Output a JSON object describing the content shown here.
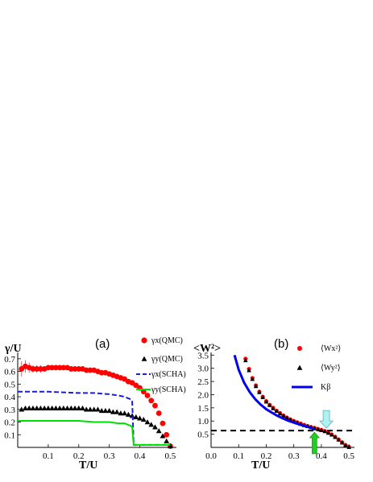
{
  "chart_data": [
    {
      "type": "scatter",
      "panel_label": "(a)",
      "xlabel": "T/U",
      "ylabel": "γ/U",
      "xlim": [
        0.0,
        0.52
      ],
      "ylim": [
        0.0,
        0.75
      ],
      "x_ticks": [
        0.1,
        0.2,
        0.3,
        0.4,
        0.5
      ],
      "x_tick_labels": [
        "0.1",
        "0.2",
        "0.3",
        "0.4",
        "0.5"
      ],
      "y_ticks": [
        0.1,
        0.2,
        0.3,
        0.4,
        0.5,
        0.6,
        0.7
      ],
      "y_tick_labels": [
        "0.1",
        "0.2",
        "0.3",
        "0.4",
        "0.5",
        "0.6",
        "0.7"
      ],
      "legend_position": "top-right",
      "series": [
        {
          "name": "γx(QMC)",
          "style": "circle",
          "color": "#ff0000",
          "x": [
            0.0125,
            0.025,
            0.0375,
            0.05,
            0.0625,
            0.075,
            0.0875,
            0.1,
            0.1125,
            0.125,
            0.1375,
            0.15,
            0.1625,
            0.175,
            0.1875,
            0.2,
            0.2125,
            0.225,
            0.2375,
            0.25,
            0.2625,
            0.275,
            0.2875,
            0.3,
            0.3125,
            0.325,
            0.3375,
            0.35,
            0.3625,
            0.375,
            0.3875,
            0.4,
            0.4125,
            0.425,
            0.4375,
            0.45,
            0.4625,
            0.475,
            0.4875,
            0.5
          ],
          "y": [
            0.62,
            0.64,
            0.63,
            0.62,
            0.62,
            0.62,
            0.62,
            0.63,
            0.63,
            0.63,
            0.63,
            0.63,
            0.63,
            0.62,
            0.62,
            0.62,
            0.62,
            0.61,
            0.61,
            0.61,
            0.6,
            0.59,
            0.59,
            0.58,
            0.57,
            0.56,
            0.55,
            0.54,
            0.52,
            0.51,
            0.49,
            0.47,
            0.44,
            0.41,
            0.37,
            0.33,
            0.27,
            0.19,
            0.1,
            0.01
          ],
          "error": [
            0.06,
            0.05,
            0.04,
            0.03,
            0.03,
            0.03,
            0.02,
            0.02,
            0.02,
            0.02,
            0.02,
            0.02,
            0.02,
            0.02,
            0.02,
            0.02,
            0.02,
            0.02,
            0.02,
            0.02,
            0.02,
            0.02,
            0.02,
            0.02,
            0.02,
            0.02,
            0.02,
            0.02,
            0.02,
            0.02,
            0.02,
            0.02,
            0.02,
            0.02,
            0.02,
            0.02,
            0.02,
            0.02,
            0.02,
            0.02
          ]
        },
        {
          "name": "γy(QMC)",
          "style": "triangle",
          "color": "#000000",
          "x": [
            0.0125,
            0.025,
            0.0375,
            0.05,
            0.0625,
            0.075,
            0.0875,
            0.1,
            0.1125,
            0.125,
            0.1375,
            0.15,
            0.1625,
            0.175,
            0.1875,
            0.2,
            0.2125,
            0.225,
            0.2375,
            0.25,
            0.2625,
            0.275,
            0.2875,
            0.3,
            0.3125,
            0.325,
            0.3375,
            0.35,
            0.3625,
            0.375,
            0.3875,
            0.4,
            0.4125,
            0.425,
            0.4375,
            0.45,
            0.4625,
            0.475,
            0.4875,
            0.5
          ],
          "y": [
            0.3,
            0.31,
            0.31,
            0.31,
            0.31,
            0.31,
            0.31,
            0.31,
            0.31,
            0.31,
            0.31,
            0.31,
            0.31,
            0.31,
            0.31,
            0.31,
            0.31,
            0.3,
            0.3,
            0.3,
            0.3,
            0.29,
            0.29,
            0.29,
            0.28,
            0.28,
            0.27,
            0.27,
            0.26,
            0.25,
            0.24,
            0.23,
            0.22,
            0.2,
            0.18,
            0.16,
            0.13,
            0.09,
            0.05,
            0.01
          ]
        },
        {
          "name": "γx(SCHA)",
          "style": "dashed-line",
          "color": "#1c1cdc",
          "x": [
            0.0,
            0.1,
            0.2,
            0.25,
            0.3,
            0.33,
            0.35,
            0.36,
            0.37,
            0.375,
            0.38,
            0.5
          ],
          "y": [
            0.44,
            0.44,
            0.43,
            0.43,
            0.42,
            0.41,
            0.4,
            0.39,
            0.38,
            0.37,
            0.02,
            0.02
          ]
        },
        {
          "name": "γy(SCHA)",
          "style": "solid-line",
          "color": "#00e000",
          "x": [
            0.0,
            0.1,
            0.2,
            0.25,
            0.3,
            0.33,
            0.35,
            0.36,
            0.37,
            0.375,
            0.38,
            0.5
          ],
          "y": [
            0.21,
            0.21,
            0.21,
            0.2,
            0.2,
            0.19,
            0.19,
            0.18,
            0.17,
            0.16,
            0.02,
            0.02
          ]
        }
      ]
    },
    {
      "type": "scatter",
      "panel_label": "(b)",
      "xlabel": "T/U",
      "ylabel": "<W²>",
      "xlim": [
        0.0,
        0.52
      ],
      "ylim": [
        0.0,
        3.6
      ],
      "x_ticks": [
        0.0,
        0.1,
        0.2,
        0.3,
        0.4,
        0.5
      ],
      "x_tick_labels": [
        "0.0",
        "0.1",
        "0.2",
        "0.3",
        "0.4",
        "0.5"
      ],
      "y_ticks": [
        0.5,
        1.0,
        1.5,
        2.0,
        2.5,
        3.0,
        3.5
      ],
      "y_tick_labels": [
        "0.5",
        "1.0",
        "1.5",
        "2.0",
        "2.5",
        "3.0",
        "3.5"
      ],
      "legend_position": "top-right",
      "reference_line": {
        "y": 0.637,
        "style": "dashed",
        "color": "#000000"
      },
      "arrows": [
        {
          "x": 0.375,
          "color": "#22cc22",
          "direction": "up"
        },
        {
          "x": 0.418,
          "color": "#aef0f4",
          "direction": "down"
        }
      ],
      "series": [
        {
          "name": "⟨Wx²⟩",
          "style": "circle",
          "color": "#ff0000",
          "x": [
            0.125,
            0.1375,
            0.15,
            0.1625,
            0.175,
            0.1875,
            0.2,
            0.2125,
            0.225,
            0.2375,
            0.25,
            0.2625,
            0.275,
            0.2875,
            0.3,
            0.3125,
            0.325,
            0.3375,
            0.35,
            0.3625,
            0.375,
            0.3875,
            0.4,
            0.4125,
            0.425,
            0.4375,
            0.45,
            0.4625,
            0.475,
            0.4875,
            0.5
          ],
          "y": [
            3.36,
            2.97,
            2.63,
            2.35,
            2.11,
            1.92,
            1.75,
            1.61,
            1.5,
            1.39,
            1.3,
            1.21,
            1.13,
            1.06,
            1.0,
            0.95,
            0.9,
            0.85,
            0.81,
            0.77,
            0.74,
            0.7,
            0.66,
            0.62,
            0.56,
            0.49,
            0.4,
            0.3,
            0.19,
            0.09,
            0.02
          ]
        },
        {
          "name": "⟨Wy²⟩",
          "style": "triangle",
          "color": "#000000",
          "x": [
            0.125,
            0.1375,
            0.15,
            0.1625,
            0.175,
            0.1875,
            0.2,
            0.2125,
            0.225,
            0.2375,
            0.25,
            0.2625,
            0.275,
            0.2875,
            0.3,
            0.3125,
            0.325,
            0.3375,
            0.35,
            0.3625,
            0.375,
            0.3875,
            0.4,
            0.4125,
            0.425,
            0.4375,
            0.45,
            0.4625,
            0.475,
            0.4875,
            0.5
          ],
          "y": [
            3.3,
            2.92,
            2.59,
            2.32,
            2.09,
            1.9,
            1.73,
            1.6,
            1.48,
            1.38,
            1.28,
            1.2,
            1.12,
            1.05,
            0.99,
            0.94,
            0.89,
            0.84,
            0.8,
            0.76,
            0.72,
            0.69,
            0.65,
            0.61,
            0.55,
            0.48,
            0.39,
            0.29,
            0.18,
            0.08,
            0.01
          ]
        },
        {
          "name": "Kβ",
          "style": "solid-line",
          "color": "#0000ee",
          "x": [
            0.085,
            0.1,
            0.12,
            0.14,
            0.16,
            0.18,
            0.2,
            0.22,
            0.24,
            0.26,
            0.28,
            0.3,
            0.32,
            0.34,
            0.36,
            0.375
          ],
          "y": [
            3.5,
            2.95,
            2.45,
            2.1,
            1.83,
            1.62,
            1.45,
            1.32,
            1.2,
            1.1,
            1.01,
            0.94,
            0.87,
            0.81,
            0.75,
            0.68
          ]
        }
      ]
    }
  ]
}
